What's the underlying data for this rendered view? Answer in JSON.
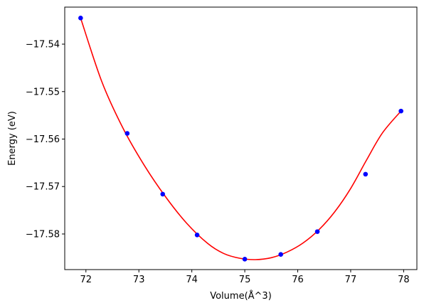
{
  "chart_data": {
    "type": "line",
    "xlabel": "Volume(Å^3)",
    "ylabel": "Energy (eV)",
    "xlim": [
      71.6,
      78.25
    ],
    "ylim": [
      -17.5875,
      -17.5322
    ],
    "xticks": [
      72,
      73,
      74,
      75,
      76,
      77,
      78
    ],
    "xtick_labels": [
      "72",
      "73",
      "74",
      "75",
      "76",
      "77",
      "78"
    ],
    "yticks": [
      -17.54,
      -17.55,
      -17.56,
      -17.57,
      -17.58
    ],
    "ytick_labels": [
      "−17.54",
      "−17.55",
      "−17.56",
      "−17.57",
      "−17.58"
    ],
    "grid": false,
    "series": [
      {
        "kind": "scatter",
        "color": "#0000ff",
        "x": [
          71.9,
          72.78,
          73.45,
          74.1,
          75.0,
          75.68,
          76.37,
          77.28,
          77.95
        ],
        "y": [
          -17.5345,
          -17.5588,
          -17.5716,
          -17.5802,
          -17.5853,
          -17.5843,
          -17.5795,
          -17.5674,
          -17.5541
        ]
      },
      {
        "kind": "line",
        "color": "#ff0000",
        "x": [
          71.9,
          72.3,
          72.7,
          73.1,
          73.5,
          73.9,
          74.3,
          74.6,
          74.9,
          75.2,
          75.5,
          75.8,
          76.1,
          76.4,
          76.7,
          77.0,
          77.3,
          77.6,
          77.95
        ],
        "y": [
          -17.5345,
          -17.5479,
          -17.5577,
          -17.5655,
          -17.5721,
          -17.5777,
          -17.582,
          -17.5841,
          -17.5851,
          -17.5854,
          -17.585,
          -17.5838,
          -17.5819,
          -17.5791,
          -17.5753,
          -17.5704,
          -17.5644,
          -17.5587,
          -17.5541
        ]
      }
    ]
  }
}
